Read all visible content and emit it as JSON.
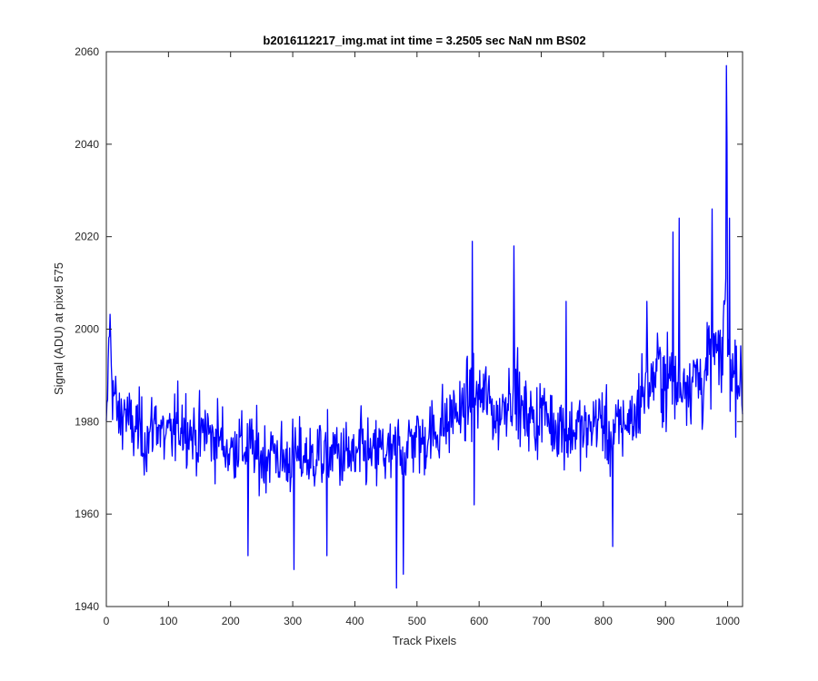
{
  "chart_data": {
    "type": "line",
    "title": "b2016112217_img.mat int time = 3.2505 sec  NaN nm BS02",
    "xlabel": "Track Pixels",
    "ylabel": "Signal (ADU) at pixel 575",
    "xlim": [
      0,
      1024
    ],
    "ylim": [
      1940,
      2060
    ],
    "xticks": [
      0,
      100,
      200,
      300,
      400,
      500,
      600,
      700,
      800,
      900,
      1000
    ],
    "yticks": [
      1940,
      1960,
      1980,
      2000,
      2020,
      2040,
      2060
    ],
    "grid": false,
    "legend": "none",
    "colors": {
      "line": "#0000ff",
      "axes": "#262626"
    },
    "series": [
      {
        "x": [
          0,
          5,
          10,
          20,
          30,
          40,
          50,
          60,
          70,
          80,
          90,
          100,
          110,
          120,
          130,
          140,
          150,
          160,
          170,
          180,
          190,
          200,
          210,
          220,
          230,
          240,
          250,
          260,
          270,
          280,
          290,
          300,
          310,
          320,
          330,
          340,
          350,
          360,
          370,
          380,
          390,
          400,
          410,
          420,
          430,
          440,
          450,
          460,
          470,
          480,
          490,
          500,
          510,
          520,
          530,
          540,
          550,
          560,
          570,
          580,
          590,
          600,
          610,
          620,
          630,
          640,
          650,
          660,
          670,
          680,
          690,
          700,
          710,
          720,
          730,
          740,
          750,
          760,
          770,
          780,
          790,
          800,
          810,
          820,
          830,
          840,
          850,
          860,
          870,
          880,
          890,
          900,
          910,
          920,
          930,
          940,
          950,
          960,
          970,
          980,
          990,
          995,
          1000,
          1005,
          1010,
          1015,
          1020,
          1024
        ],
        "y": [
          1975,
          2002,
          1988,
          1980,
          1983,
          1978,
          1979,
          1976,
          1977,
          1981,
          1977,
          1976,
          1978,
          1980,
          1979,
          1977,
          1976,
          1979,
          1976,
          1977,
          1975,
          1973,
          1976,
          1974,
          1975,
          1973,
          1972,
          1973,
          1974,
          1972,
          1971,
          1973,
          1972,
          1973,
          1971,
          1974,
          1972,
          1973,
          1974,
          1972,
          1973,
          1971,
          1974,
          1973,
          1972,
          1974,
          1973,
          1972,
          1975,
          1973,
          1976,
          1977,
          1975,
          1978,
          1977,
          1980,
          1979,
          1983,
          1981,
          1984,
          1986,
          1985,
          1986,
          1983,
          1980,
          1984,
          1987,
          1985,
          1981,
          1982,
          1979,
          1983,
          1981,
          1979,
          1980,
          1977,
          1978,
          1979,
          1977,
          1979,
          1981,
          1980,
          1976,
          1978,
          1979,
          1981,
          1980,
          1986,
          1988,
          1989,
          1992,
          1988,
          1990,
          1986,
          1990,
          1989,
          1990,
          1988,
          1993,
          1996,
          1990,
          2008,
          1997,
          1991,
          1990,
          1992,
          1989,
          1985
        ]
      }
    ]
  }
}
